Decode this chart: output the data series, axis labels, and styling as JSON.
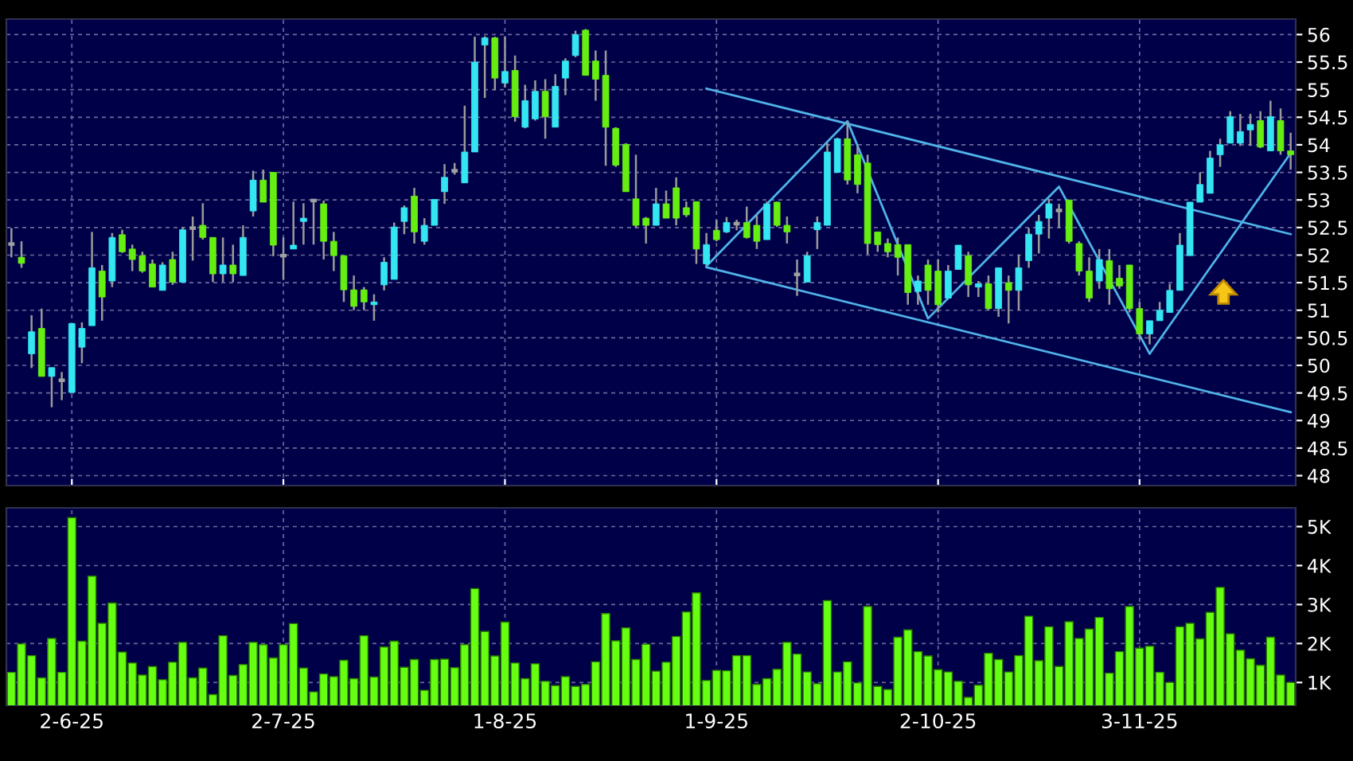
{
  "chart_data": [
    {
      "type": "candlestick",
      "grid": true,
      "tick_labels": "y",
      "categories": [
        null,
        null,
        null,
        null,
        null,
        null,
        null,
        null,
        null,
        null,
        null,
        null,
        null,
        null,
        null,
        null,
        null,
        null,
        null,
        null,
        null,
        null,
        null,
        null,
        null,
        null,
        null,
        null,
        null,
        null,
        null,
        null,
        null,
        null,
        null,
        null,
        null,
        null,
        null,
        null,
        null,
        null,
        null,
        null,
        null,
        null,
        null,
        null,
        null,
        null,
        null,
        null,
        null,
        null,
        null,
        null,
        null,
        null,
        null,
        null,
        null,
        null,
        null,
        null,
        null,
        null,
        null,
        null,
        null,
        null,
        null,
        null,
        null,
        null,
        null,
        null,
        null,
        null,
        null,
        null,
        null,
        null,
        null,
        null,
        null,
        null,
        null,
        null,
        null,
        null,
        null,
        null,
        null,
        null,
        null,
        null,
        null,
        null,
        null,
        null,
        null,
        null,
        null,
        null,
        null,
        null,
        null,
        null,
        null,
        null,
        null,
        null,
        null,
        null,
        null,
        null,
        null,
        null,
        null,
        null,
        null,
        null,
        null,
        null,
        null,
        null,
        null,
        null
      ],
      "ohlc": [
        [
          52.2,
          52.49,
          51.96,
          52.2
        ],
        [
          51.96,
          52.25,
          51.77,
          51.85
        ],
        [
          50.21,
          50.91,
          49.95,
          50.61
        ],
        [
          50.67,
          51.03,
          49.8,
          49.8
        ],
        [
          49.8,
          49.96,
          49.24,
          49.96
        ],
        [
          49.73,
          49.88,
          49.37,
          49.73
        ],
        [
          49.51,
          50.76,
          49.51,
          50.76
        ],
        [
          50.33,
          50.78,
          50.04,
          50.67
        ],
        [
          50.72,
          52.42,
          50.72,
          51.77
        ],
        [
          51.71,
          51.82,
          50.81,
          51.24
        ],
        [
          51.53,
          52.4,
          51.42,
          52.32
        ],
        [
          52.37,
          52.46,
          52.04,
          52.06
        ],
        [
          52.11,
          52.19,
          51.71,
          51.92
        ],
        [
          51.99,
          52.06,
          51.68,
          51.71
        ],
        [
          51.84,
          51.92,
          51.42,
          51.42
        ],
        [
          51.36,
          51.87,
          51.36,
          51.82
        ],
        [
          51.92,
          52.06,
          51.46,
          51.51
        ],
        [
          51.51,
          52.51,
          51.51,
          52.46
        ],
        [
          52.49,
          52.7,
          51.9,
          52.49
        ],
        [
          52.54,
          52.94,
          52.28,
          52.32
        ],
        [
          52.32,
          52.32,
          51.51,
          51.66
        ],
        [
          51.66,
          52.32,
          51.51,
          51.82
        ],
        [
          51.82,
          52.19,
          51.51,
          51.66
        ],
        [
          51.63,
          52.54,
          51.63,
          52.32
        ],
        [
          52.8,
          53.53,
          52.7,
          53.36
        ],
        [
          53.36,
          53.55,
          52.96,
          52.96
        ],
        [
          53.5,
          53.5,
          51.98,
          52.18
        ],
        [
          51.99,
          52.32,
          51.55,
          51.99
        ],
        [
          52.11,
          52.97,
          52.11,
          52.18
        ],
        [
          52.61,
          52.94,
          52.19,
          52.67
        ],
        [
          52.99,
          52.99,
          52.19,
          52.99
        ],
        [
          52.93,
          52.99,
          51.92,
          52.25
        ],
        [
          52.25,
          52.42,
          51.71,
          51.99
        ],
        [
          51.99,
          51.99,
          51.15,
          51.37
        ],
        [
          51.37,
          51.63,
          51.0,
          51.07
        ],
        [
          51.37,
          51.42,
          51.0,
          51.15
        ],
        [
          51.1,
          51.29,
          50.81,
          51.15
        ],
        [
          51.46,
          51.96,
          51.36,
          51.87
        ],
        [
          51.56,
          52.59,
          51.56,
          52.51
        ],
        [
          52.61,
          52.9,
          52.38,
          52.86
        ],
        [
          53.07,
          53.22,
          52.21,
          52.42
        ],
        [
          52.25,
          52.67,
          52.19,
          52.54
        ],
        [
          52.54,
          53.01,
          52.54,
          53.01
        ],
        [
          53.15,
          53.65,
          52.93,
          53.41
        ],
        [
          53.53,
          53.67,
          53.46,
          53.53
        ],
        [
          53.31,
          54.71,
          53.31,
          53.87
        ],
        [
          53.87,
          55.96,
          53.87,
          55.5
        ],
        [
          55.81,
          55.97,
          54.85,
          55.94
        ],
        [
          55.94,
          55.96,
          54.99,
          55.21
        ],
        [
          55.12,
          55.96,
          55.04,
          55.33
        ],
        [
          55.35,
          55.62,
          54.42,
          54.51
        ],
        [
          54.32,
          55.09,
          54.3,
          54.8
        ],
        [
          54.47,
          55.17,
          54.44,
          54.97
        ],
        [
          54.97,
          55.19,
          54.11,
          54.51
        ],
        [
          54.32,
          55.28,
          54.32,
          55.06
        ],
        [
          55.21,
          55.57,
          54.9,
          55.52
        ],
        [
          55.62,
          56.07,
          55.59,
          56.0
        ],
        [
          56.08,
          56.1,
          55.26,
          55.26
        ],
        [
          55.52,
          55.71,
          54.8,
          55.19
        ],
        [
          55.26,
          55.71,
          53.62,
          54.32
        ],
        [
          54.3,
          54.32,
          53.6,
          53.63
        ],
        [
          54.01,
          54.03,
          53.15,
          53.15
        ],
        [
          53.02,
          53.82,
          52.49,
          52.54
        ],
        [
          52.67,
          52.69,
          52.21,
          52.54
        ],
        [
          52.54,
          53.22,
          52.54,
          52.93
        ],
        [
          52.93,
          53.17,
          52.67,
          52.67
        ],
        [
          53.22,
          53.41,
          52.54,
          52.67
        ],
        [
          52.86,
          52.97,
          52.69,
          52.73
        ],
        [
          52.97,
          52.97,
          51.84,
          52.11
        ],
        [
          51.84,
          52.4,
          51.82,
          52.19
        ],
        [
          52.45,
          52.64,
          52.25,
          52.28
        ],
        [
          52.42,
          52.69,
          52.4,
          52.59
        ],
        [
          52.57,
          52.64,
          52.45,
          52.57
        ],
        [
          52.59,
          52.88,
          52.3,
          52.32
        ],
        [
          52.54,
          52.73,
          52.11,
          52.25
        ],
        [
          52.28,
          52.97,
          52.28,
          52.93
        ],
        [
          52.96,
          52.97,
          52.51,
          52.54
        ],
        [
          52.54,
          52.7,
          52.21,
          52.42
        ],
        [
          51.65,
          51.92,
          51.26,
          51.65
        ],
        [
          51.51,
          52.06,
          51.51,
          51.99
        ],
        [
          52.46,
          52.7,
          52.11,
          52.59
        ],
        [
          52.54,
          54.03,
          52.54,
          53.87
        ],
        [
          53.5,
          54.13,
          53.5,
          54.11
        ],
        [
          54.11,
          54.42,
          53.28,
          53.36
        ],
        [
          53.82,
          53.98,
          53.12,
          53.28
        ],
        [
          53.67,
          53.82,
          52.01,
          52.21
        ],
        [
          52.42,
          52.42,
          52.06,
          52.19
        ],
        [
          52.21,
          52.3,
          51.96,
          52.06
        ],
        [
          52.19,
          52.32,
          51.63,
          51.96
        ],
        [
          52.19,
          52.19,
          51.1,
          51.32
        ],
        [
          51.34,
          51.63,
          51.1,
          51.53
        ],
        [
          51.82,
          51.92,
          51.1,
          51.36
        ],
        [
          51.71,
          51.92,
          50.96,
          51.1
        ],
        [
          51.22,
          51.82,
          51.22,
          51.71
        ],
        [
          51.74,
          52.18,
          51.74,
          52.18
        ],
        [
          51.99,
          52.06,
          51.24,
          51.46
        ],
        [
          51.42,
          51.53,
          51.24,
          51.48
        ],
        [
          51.48,
          51.63,
          51.0,
          51.03
        ],
        [
          51.03,
          51.77,
          50.88,
          51.77
        ],
        [
          51.5,
          51.63,
          50.76,
          51.36
        ],
        [
          51.36,
          52.01,
          51.0,
          51.77
        ],
        [
          51.9,
          52.49,
          51.77,
          52.38
        ],
        [
          52.38,
          52.73,
          52.03,
          52.61
        ],
        [
          52.67,
          53.02,
          52.3,
          52.93
        ],
        [
          52.81,
          52.93,
          52.49,
          52.81
        ],
        [
          53.0,
          53.0,
          52.21,
          52.25
        ],
        [
          52.21,
          52.25,
          51.63,
          51.71
        ],
        [
          51.71,
          51.96,
          51.15,
          51.22
        ],
        [
          51.53,
          52.11,
          51.39,
          51.92
        ],
        [
          51.9,
          52.11,
          51.1,
          51.39
        ],
        [
          51.58,
          51.82,
          51.39,
          51.44
        ],
        [
          51.82,
          51.82,
          50.96,
          51.03
        ],
        [
          51.03,
          51.15,
          50.47,
          50.57
        ],
        [
          50.57,
          50.81,
          50.38,
          50.81
        ],
        [
          50.81,
          51.15,
          50.81,
          51.0
        ],
        [
          50.96,
          51.48,
          50.96,
          51.36
        ],
        [
          51.36,
          52.4,
          51.36,
          52.18
        ],
        [
          51.99,
          52.96,
          51.99,
          52.96
        ],
        [
          52.96,
          53.5,
          52.96,
          53.28
        ],
        [
          53.12,
          53.89,
          53.12,
          53.76
        ],
        [
          53.82,
          54.11,
          53.6,
          54.0
        ],
        [
          54.03,
          54.61,
          54.03,
          54.51
        ],
        [
          54.03,
          54.56,
          53.98,
          54.24
        ],
        [
          54.27,
          54.56,
          53.98,
          54.37
        ],
        [
          54.44,
          54.61,
          53.94,
          53.96
        ],
        [
          53.89,
          54.8,
          53.89,
          54.51
        ],
        [
          54.44,
          54.66,
          53.82,
          53.89
        ],
        [
          53.89,
          54.22,
          53.55,
          53.82
        ]
      ],
      "colors": [
        "#a0a0a0",
        "#66ee11",
        "#33e6f2",
        "#66ee11",
        "#33e6f2",
        "#a0a0a0",
        "#33e6f2",
        "#33e6f2",
        "#33e6f2",
        "#66ee11",
        "#33e6f2",
        "#66ee11",
        "#66ee11",
        "#66ee11",
        "#66ee11",
        "#33e6f2",
        "#66ee11",
        "#33e6f2",
        "#a0a0a0",
        "#66ee11",
        "#66ee11",
        "#33e6f2",
        "#66ee11",
        "#33e6f2",
        "#33e6f2",
        "#66ee11",
        "#66ee11",
        "#a0a0a0",
        "#33e6f2",
        "#33e6f2",
        "#a0a0a0",
        "#66ee11",
        "#66ee11",
        "#66ee11",
        "#66ee11",
        "#66ee11",
        "#33e6f2",
        "#33e6f2",
        "#33e6f2",
        "#33e6f2",
        "#66ee11",
        "#33e6f2",
        "#33e6f2",
        "#33e6f2",
        "#a0a0a0",
        "#33e6f2",
        "#33e6f2",
        "#33e6f2",
        "#66ee11",
        "#33e6f2",
        "#66ee11",
        "#33e6f2",
        "#33e6f2",
        "#66ee11",
        "#33e6f2",
        "#33e6f2",
        "#33e6f2",
        "#66ee11",
        "#66ee11",
        "#66ee11",
        "#66ee11",
        "#66ee11",
        "#66ee11",
        "#66ee11",
        "#33e6f2",
        "#66ee11",
        "#66ee11",
        "#66ee11",
        "#66ee11",
        "#33e6f2",
        "#66ee11",
        "#33e6f2",
        "#a0a0a0",
        "#66ee11",
        "#66ee11",
        "#33e6f2",
        "#66ee11",
        "#66ee11",
        "#a0a0a0",
        "#33e6f2",
        "#33e6f2",
        "#33e6f2",
        "#33e6f2",
        "#66ee11",
        "#66ee11",
        "#66ee11",
        "#66ee11",
        "#66ee11",
        "#66ee11",
        "#66ee11",
        "#33e6f2",
        "#66ee11",
        "#66ee11",
        "#33e6f2",
        "#33e6f2",
        "#66ee11",
        "#33e6f2",
        "#66ee11",
        "#33e6f2",
        "#66ee11",
        "#33e6f2",
        "#33e6f2",
        "#33e6f2",
        "#33e6f2",
        "#a0a0a0",
        "#66ee11",
        "#66ee11",
        "#66ee11",
        "#33e6f2",
        "#66ee11",
        "#66ee11",
        "#66ee11",
        "#66ee11",
        "#33e6f2",
        "#33e6f2",
        "#33e6f2",
        "#33e6f2",
        "#33e6f2",
        "#33e6f2",
        "#33e6f2",
        "#33e6f2",
        "#33e6f2",
        "#33e6f2",
        "#33e6f2",
        "#66ee11",
        "#33e6f2",
        "#66ee11",
        "#66ee11"
      ],
      "series": [
        {
          "type": "line",
          "color": "#4fb3e8",
          "values": [
            null,
            null,
            null,
            null,
            null,
            null,
            null,
            null,
            null,
            null,
            null,
            null,
            null,
            null,
            null,
            null,
            null,
            null,
            null,
            null,
            null,
            null,
            null,
            null,
            null,
            null,
            null,
            null,
            null,
            null,
            null,
            null,
            null,
            null,
            null,
            null,
            null,
            null,
            null,
            null,
            null,
            null,
            null,
            null,
            null,
            null,
            null,
            null,
            null,
            null,
            null,
            null,
            null,
            null,
            null,
            null,
            null,
            null,
            null,
            null,
            null,
            null,
            null,
            null,
            null,
            null,
            null,
            null,
            null,
            55.02,
            null,
            null,
            null,
            null,
            null,
            null,
            null,
            null,
            null,
            null,
            null,
            null,
            null,
            null,
            null,
            null,
            null,
            null,
            null,
            null,
            null,
            null,
            null,
            null,
            null,
            null,
            null,
            null,
            null,
            null,
            null,
            null,
            null,
            null,
            null,
            null,
            null,
            null,
            null,
            null,
            null,
            null,
            null,
            null,
            null,
            null,
            null,
            null,
            null,
            null,
            null,
            null,
            null,
            null,
            null,
            null,
            null,
            52.38
          ]
        },
        {
          "type": "line",
          "color": "#4fb3e8",
          "values": [
            null,
            null,
            null,
            null,
            null,
            null,
            null,
            null,
            null,
            null,
            null,
            null,
            null,
            null,
            null,
            null,
            null,
            null,
            null,
            null,
            null,
            null,
            null,
            null,
            null,
            null,
            null,
            null,
            null,
            null,
            null,
            null,
            null,
            null,
            null,
            null,
            null,
            null,
            null,
            null,
            null,
            null,
            null,
            null,
            null,
            null,
            null,
            null,
            null,
            null,
            null,
            null,
            null,
            null,
            null,
            null,
            null,
            null,
            null,
            null,
            null,
            null,
            null,
            null,
            null,
            null,
            null,
            null,
            null,
            51.78,
            null,
            null,
            null,
            null,
            null,
            null,
            null,
            null,
            null,
            null,
            null,
            null,
            null,
            null,
            null,
            null,
            null,
            null,
            null,
            null,
            null,
            null,
            null,
            null,
            null,
            null,
            null,
            null,
            null,
            null,
            null,
            null,
            null,
            null,
            null,
            null,
            null,
            null,
            null,
            null,
            null,
            null,
            null,
            null,
            null,
            null,
            null,
            null,
            null,
            null,
            null,
            null,
            null,
            null,
            null,
            null,
            null,
            49.15
          ]
        },
        {
          "type": "line",
          "color": "#4fb3e8",
          "values": [
            null,
            null,
            null,
            null,
            null,
            null,
            null,
            null,
            null,
            null,
            null,
            null,
            null,
            null,
            null,
            null,
            null,
            null,
            null,
            null,
            null,
            null,
            null,
            null,
            null,
            null,
            null,
            null,
            null,
            null,
            null,
            null,
            null,
            null,
            null,
            null,
            null,
            null,
            null,
            null,
            null,
            null,
            null,
            null,
            null,
            null,
            null,
            null,
            null,
            null,
            null,
            null,
            null,
            null,
            null,
            null,
            null,
            null,
            null,
            null,
            null,
            null,
            null,
            null,
            null,
            null,
            null,
            null,
            null,
            51.8,
            null,
            null,
            null,
            null,
            null,
            null,
            null,
            null,
            null,
            null,
            null,
            null,
            null,
            54.43,
            null,
            null,
            null,
            null,
            null,
            null,
            null,
            50.85,
            null,
            null,
            null,
            null,
            null,
            null,
            null,
            null,
            null,
            null,
            null,
            null,
            53.24,
            null,
            null,
            null,
            null,
            null,
            null,
            null,
            null,
            50.21,
            null,
            null,
            null,
            null,
            null,
            null,
            null,
            null,
            null,
            null,
            null,
            null,
            null,
            53.85
          ]
        }
      ],
      "ylim": [
        47.82,
        56.28
      ],
      "yticks": [
        48,
        48.5,
        49,
        49.5,
        50,
        50.5,
        51,
        51.5,
        52,
        52.5,
        53,
        53.5,
        54,
        54.5,
        55,
        55.5,
        56
      ]
    },
    {
      "type": "bar",
      "grid": true,
      "color": "#66ff11",
      "categories": [
        null,
        null,
        null,
        null,
        null,
        null,
        "2-6-25",
        null,
        null,
        null,
        null,
        null,
        null,
        null,
        null,
        null,
        null,
        null,
        null,
        null,
        null,
        null,
        null,
        null,
        null,
        null,
        null,
        "2-7-25",
        null,
        null,
        null,
        null,
        null,
        null,
        null,
        null,
        null,
        null,
        null,
        null,
        null,
        null,
        null,
        null,
        null,
        null,
        null,
        null,
        null,
        "1-8-25",
        null,
        null,
        null,
        null,
        null,
        null,
        null,
        null,
        null,
        null,
        null,
        null,
        null,
        null,
        null,
        null,
        null,
        null,
        null,
        null,
        "1-9-25",
        null,
        null,
        null,
        null,
        null,
        null,
        null,
        null,
        null,
        null,
        null,
        null,
        null,
        null,
        null,
        null,
        null,
        null,
        null,
        null,
        null,
        "2-10-25",
        null,
        null,
        null,
        null,
        null,
        null,
        null,
        null,
        null,
        null,
        null,
        null,
        null,
        null,
        null,
        null,
        null,
        null,
        null,
        "3-11-25",
        null,
        null,
        null,
        null,
        null,
        null,
        null,
        null,
        null,
        null,
        null,
        null,
        null,
        null,
        null
      ],
      "values": [
        1260,
        1990,
        1690,
        1120,
        2130,
        1260,
        5230,
        2060,
        3730,
        2520,
        3040,
        1780,
        1500,
        1190,
        1410,
        1070,
        1520,
        2030,
        1120,
        1370,
        690,
        2200,
        1180,
        1460,
        2030,
        1970,
        1630,
        1970,
        2510,
        1370,
        760,
        1220,
        1150,
        1570,
        1100,
        2200,
        1140,
        1910,
        2060,
        1390,
        1590,
        800,
        1590,
        1600,
        1380,
        1970,
        3410,
        2310,
        1680,
        2550,
        1500,
        1100,
        1480,
        1030,
        920,
        1150,
        900,
        950,
        1530,
        2770,
        2070,
        2400,
        1590,
        1980,
        1290,
        1520,
        2180,
        2810,
        3300,
        1050,
        1310,
        1300,
        1690,
        1690,
        950,
        1100,
        1340,
        2030,
        1730,
        1270,
        970,
        3100,
        1270,
        1530,
        990,
        2950,
        900,
        820,
        2160,
        2350,
        1790,
        1680,
        1330,
        1270,
        1030,
        620,
        930,
        1750,
        1590,
        1270,
        1690,
        2700,
        1560,
        2430,
        1410,
        2560,
        2130,
        2370,
        2670,
        1240,
        1790,
        2950,
        1880,
        1930,
        1260,
        1000,
        2430,
        2520,
        2120,
        2800,
        3440,
        2250,
        1830,
        1610,
        1440,
        2160,
        1190,
        1000
      ],
      "ylim": [
        415,
        5480
      ],
      "yticks": [
        {
          "value": 1000,
          "label": "1K"
        },
        {
          "value": 2000,
          "label": "2K"
        },
        {
          "value": 3000,
          "label": "3K"
        },
        {
          "value": 4000,
          "label": "4K"
        },
        {
          "value": 5000,
          "label": "5K"
        }
      ]
    }
  ]
}
